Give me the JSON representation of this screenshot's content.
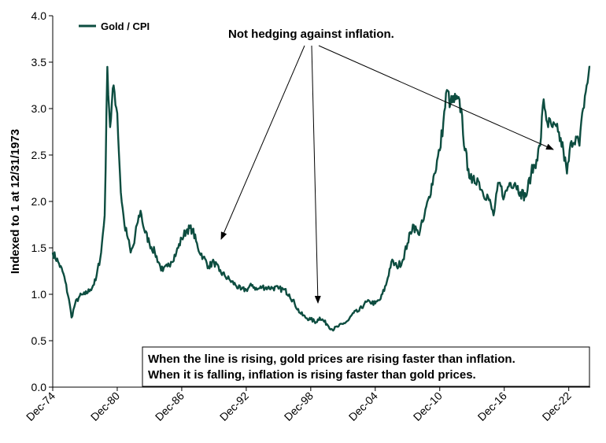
{
  "chart_data": {
    "type": "line",
    "title": "",
    "xlabel": "",
    "ylabel": "Indexed to 1 at 12/31/1973",
    "ylim": [
      0,
      4.0
    ],
    "yticks": [
      "0.0",
      "0.5",
      "1.0",
      "1.5",
      "2.0",
      "2.5",
      "3.0",
      "3.5",
      "4.0"
    ],
    "xticks": [
      "Dec-74",
      "Dec-80",
      "Dec-86",
      "Dec-92",
      "Dec-98",
      "Dec-04",
      "Dec-10",
      "Dec-16",
      "Dec-22"
    ],
    "xlim": [
      "1974-12",
      "2024-12"
    ],
    "grid": false,
    "legend_position": "top-left",
    "line_color": "#0d4d40",
    "series": [
      {
        "name": "Gold / CPI",
        "x": [
          "1974-12",
          "1975-06",
          "1975-12",
          "1976-06",
          "1976-09",
          "1977-01",
          "1977-06",
          "1977-12",
          "1978-06",
          "1978-12",
          "1979-06",
          "1979-10",
          "1980-01",
          "1980-04",
          "1980-08",
          "1980-12",
          "1981-04",
          "1981-08",
          "1981-12",
          "1982-03",
          "1982-07",
          "1982-10",
          "1983-02",
          "1983-06",
          "1983-12",
          "1984-06",
          "1984-12",
          "1985-03",
          "1985-08",
          "1985-12",
          "1986-06",
          "1986-12",
          "1987-06",
          "1987-12",
          "1988-06",
          "1988-12",
          "1989-06",
          "1989-12",
          "1990-06",
          "1990-12",
          "1991-06",
          "1991-12",
          "1992-06",
          "1992-12",
          "1993-07",
          "1993-12",
          "1994-06",
          "1994-12",
          "1995-06",
          "1995-12",
          "1996-06",
          "1996-12",
          "1997-06",
          "1997-12",
          "1998-06",
          "1998-12",
          "1999-06",
          "1999-10",
          "2000-06",
          "2000-12",
          "2001-06",
          "2001-12",
          "2002-06",
          "2002-12",
          "2003-06",
          "2003-12",
          "2004-06",
          "2004-12",
          "2005-06",
          "2005-12",
          "2006-06",
          "2006-12",
          "2007-06",
          "2007-12",
          "2008-06",
          "2008-12",
          "2009-06",
          "2009-12",
          "2010-06",
          "2010-12",
          "2011-04",
          "2011-08",
          "2011-12",
          "2012-06",
          "2012-12",
          "2013-04",
          "2013-08",
          "2013-12",
          "2014-06",
          "2014-12",
          "2015-06",
          "2015-12",
          "2016-06",
          "2016-12",
          "2017-06",
          "2017-12",
          "2018-06",
          "2018-12",
          "2019-06",
          "2019-12",
          "2020-04",
          "2020-08",
          "2020-12",
          "2021-06",
          "2021-12",
          "2022-06",
          "2022-10",
          "2023-03",
          "2023-08",
          "2023-12",
          "2024-04",
          "2024-08",
          "2024-12"
        ],
        "values": [
          1.45,
          1.35,
          1.22,
          0.95,
          0.75,
          0.9,
          0.98,
          1.0,
          1.05,
          1.15,
          1.45,
          1.85,
          3.45,
          2.8,
          3.25,
          2.95,
          2.1,
          1.75,
          1.6,
          1.45,
          1.55,
          1.75,
          1.9,
          1.7,
          1.55,
          1.45,
          1.3,
          1.25,
          1.3,
          1.35,
          1.45,
          1.6,
          1.7,
          1.7,
          1.5,
          1.4,
          1.3,
          1.35,
          1.25,
          1.2,
          1.15,
          1.1,
          1.05,
          1.05,
          1.1,
          1.05,
          1.08,
          1.07,
          1.07,
          1.06,
          1.05,
          1.0,
          0.9,
          0.8,
          0.75,
          0.73,
          0.7,
          0.75,
          0.68,
          0.62,
          0.65,
          0.68,
          0.72,
          0.8,
          0.82,
          0.9,
          0.92,
          0.9,
          0.95,
          1.1,
          1.35,
          1.3,
          1.35,
          1.55,
          1.75,
          1.65,
          1.8,
          2.05,
          2.3,
          2.55,
          2.85,
          3.2,
          3.05,
          3.1,
          3.0,
          2.55,
          2.35,
          2.2,
          2.25,
          2.1,
          2.05,
          1.85,
          2.2,
          2.05,
          2.2,
          2.2,
          2.1,
          2.05,
          2.3,
          2.45,
          2.6,
          3.1,
          2.85,
          2.8,
          2.75,
          2.55,
          2.3,
          2.65,
          2.7,
          2.6,
          3.0,
          3.25,
          3.45
        ]
      }
    ],
    "annotations": [
      {
        "text": "Not hedging against inflation.",
        "arrow_targets": [
          "1989-04",
          "1999-02",
          "2021-06"
        ]
      },
      {
        "text": "When the line is rising, gold prices are rising faster than inflation. When it is falling, inflation is rising faster than gold prices.",
        "lines": [
          "When the line is rising, gold prices are rising faster than inflation.",
          "When it is falling, inflation is rising faster than gold prices."
        ]
      }
    ]
  }
}
